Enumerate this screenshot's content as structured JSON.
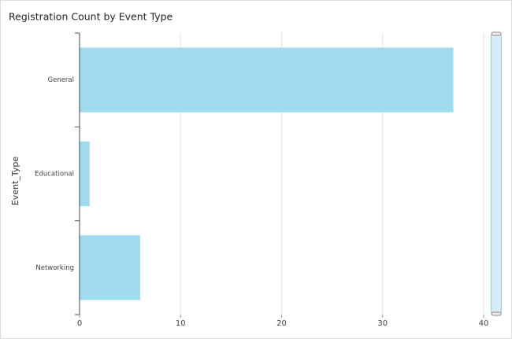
{
  "chart_data": {
    "type": "bar",
    "orientation": "horizontal",
    "title": "Registration Count by Event Type",
    "y_label": "Event_Type",
    "categories": [
      "General",
      "Educational",
      "Networking"
    ],
    "values": [
      37,
      1,
      6
    ],
    "color": "#a0dcef",
    "xlim": [
      0,
      40
    ],
    "xticks": [
      0,
      10,
      20,
      30,
      40
    ],
    "grid": true
  }
}
